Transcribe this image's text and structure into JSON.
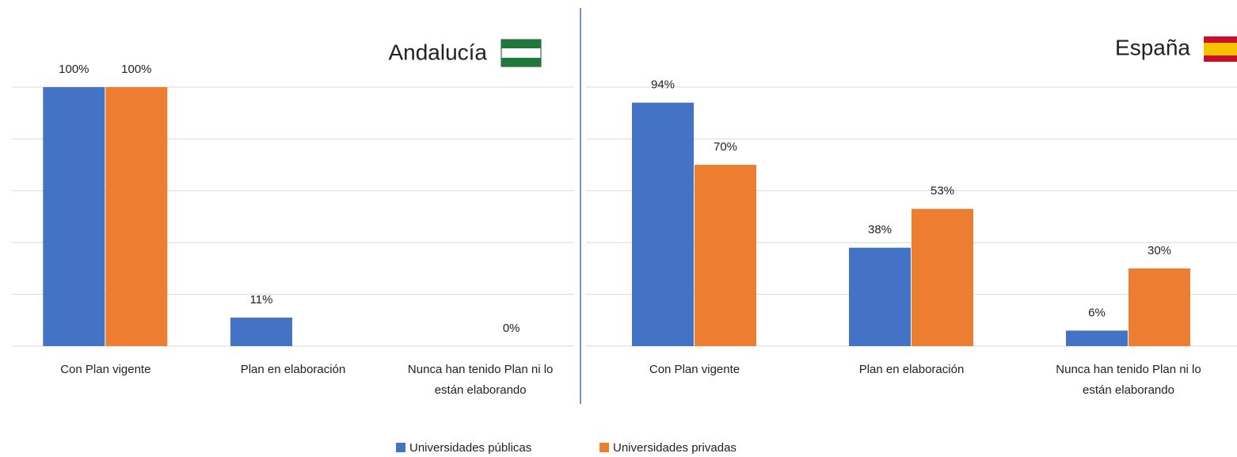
{
  "chart_data": [
    {
      "type": "bar",
      "title": "Andalucía",
      "categories": [
        "Con Plan vigente",
        "Plan en elaboración",
        "Nunca han tenido Plan ni lo están elaborando"
      ],
      "series": [
        {
          "name": "Universidades públicas",
          "color": "#4472c4",
          "values": [
            100,
            11,
            null
          ],
          "value_labels": [
            "100%",
            "11%",
            null
          ]
        },
        {
          "name": "Universidades privadas",
          "color": "#ed7d31",
          "values": [
            100,
            null,
            0
          ],
          "value_labels": [
            "100%",
            null,
            "0%"
          ]
        }
      ],
      "ylim": [
        0,
        100
      ],
      "yticks": [
        0,
        20,
        40,
        60,
        80,
        100
      ],
      "grid": true,
      "legend": "bottom"
    },
    {
      "type": "bar",
      "title": "España",
      "categories": [
        "Con Plan vigente",
        "Plan en elaboración",
        "Nunca han tenido Plan ni lo están elaborando"
      ],
      "series": [
        {
          "color": "#4472c4",
          "values": [
            94,
            38,
            6
          ],
          "value_labels": [
            "94%",
            "38%",
            "6%"
          ]
        },
        {
          "color": "#ed7d31",
          "values": [
            70,
            53,
            30
          ],
          "value_labels": [
            "70%",
            "53%",
            "30%"
          ]
        }
      ],
      "ylim": [
        0,
        100
      ],
      "yticks": [
        0,
        20,
        40,
        60,
        80,
        100
      ],
      "grid": true
    }
  ]
}
